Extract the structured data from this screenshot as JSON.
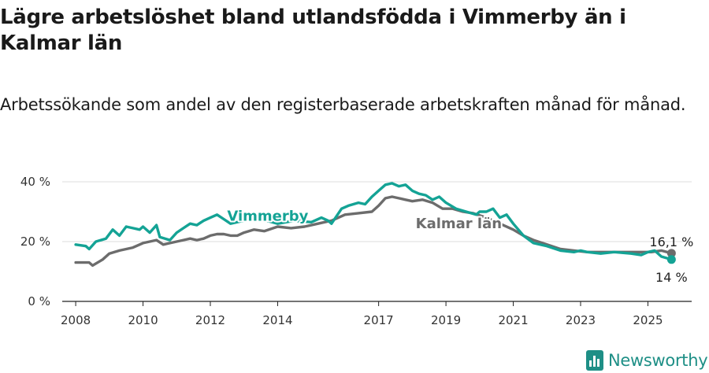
{
  "title": "Lägre arbetslöshet bland utlandsfödda i Vimmerby än i Kalmar län",
  "subtitle": "Arbetssökande som andel av den registerbaserade arbetskraften månad för månad.",
  "brand": "Newsworthy",
  "colors": {
    "vimmerby": "#14a395",
    "kalmar": "#6c6c6c",
    "grid": "#dcdcdc",
    "axis": "#222222",
    "brand": "#1e8f86"
  },
  "chart_data": {
    "type": "line",
    "title": "Lägre arbetslöshet bland utlandsfödda i Vimmerby än i Kalmar län",
    "subtitle": "Arbetssökande som andel av den registerbaserade arbetskraften månad för månad.",
    "xlabel": "",
    "ylabel": "",
    "xlim": [
      2007.6,
      2026.3
    ],
    "ylim": [
      0,
      40
    ],
    "yticks": [
      0,
      20,
      40
    ],
    "ytick_labels": [
      "0 %",
      "20 %",
      "40 %"
    ],
    "xticks": [
      2008,
      2010,
      2012,
      2014,
      2017,
      2019,
      2021,
      2023,
      2025
    ],
    "xtick_labels": [
      "2008",
      "2010",
      "2012",
      "2014",
      "2017",
      "2019",
      "2021",
      "2023",
      "2025"
    ],
    "grid": "horizontal",
    "legend": "inline labels",
    "series": [
      {
        "name": "Vimmerby",
        "color": "#14a395",
        "end_label": "14 %",
        "points": [
          [
            2008.0,
            19
          ],
          [
            2008.3,
            18.5
          ],
          [
            2008.4,
            17.5
          ],
          [
            2008.6,
            20
          ],
          [
            2008.9,
            21
          ],
          [
            2009.1,
            24
          ],
          [
            2009.3,
            22
          ],
          [
            2009.5,
            25
          ],
          [
            2009.7,
            24.5
          ],
          [
            2009.9,
            24
          ],
          [
            2010.0,
            25
          ],
          [
            2010.2,
            23
          ],
          [
            2010.4,
            25.5
          ],
          [
            2010.5,
            21.5
          ],
          [
            2010.8,
            20.5
          ],
          [
            2011.0,
            23
          ],
          [
            2011.2,
            24.5
          ],
          [
            2011.4,
            26
          ],
          [
            2011.6,
            25.5
          ],
          [
            2011.8,
            27
          ],
          [
            2012.0,
            28
          ],
          [
            2012.2,
            29
          ],
          [
            2012.4,
            27.5
          ],
          [
            2012.6,
            26
          ],
          [
            2013.0,
            27
          ],
          [
            2013.5,
            27.5
          ],
          [
            2014.0,
            26
          ],
          [
            2014.5,
            27
          ],
          [
            2015.0,
            26.5
          ],
          [
            2015.3,
            28
          ],
          [
            2015.5,
            27
          ],
          [
            2015.6,
            26
          ],
          [
            2015.9,
            31
          ],
          [
            2016.1,
            32
          ],
          [
            2016.4,
            33
          ],
          [
            2016.6,
            32.5
          ],
          [
            2016.8,
            35
          ],
          [
            2017.0,
            37
          ],
          [
            2017.2,
            39
          ],
          [
            2017.4,
            39.5
          ],
          [
            2017.6,
            38.5
          ],
          [
            2017.8,
            39
          ],
          [
            2018.0,
            37
          ],
          [
            2018.2,
            36
          ],
          [
            2018.4,
            35.5
          ],
          [
            2018.6,
            34
          ],
          [
            2018.8,
            35
          ],
          [
            2019.0,
            33
          ],
          [
            2019.3,
            31
          ],
          [
            2019.6,
            30
          ],
          [
            2019.9,
            29
          ],
          [
            2020.0,
            30
          ],
          [
            2020.2,
            30
          ],
          [
            2020.4,
            31
          ],
          [
            2020.6,
            28
          ],
          [
            2020.8,
            29
          ],
          [
            2021.0,
            26
          ],
          [
            2021.3,
            22
          ],
          [
            2021.6,
            19.5
          ],
          [
            2022.0,
            18.5
          ],
          [
            2022.4,
            17
          ],
          [
            2022.8,
            16.5
          ],
          [
            2023.0,
            17
          ],
          [
            2023.2,
            16.5
          ],
          [
            2023.6,
            16
          ],
          [
            2024.0,
            16.5
          ],
          [
            2024.5,
            16
          ],
          [
            2024.8,
            15.5
          ],
          [
            2025.0,
            16.5
          ],
          [
            2025.2,
            17
          ],
          [
            2025.4,
            15
          ],
          [
            2025.7,
            14
          ]
        ]
      },
      {
        "name": "Kalmar län",
        "color": "#6c6c6c",
        "end_label": "16,1 %",
        "points": [
          [
            2008.0,
            13
          ],
          [
            2008.4,
            13
          ],
          [
            2008.5,
            12
          ],
          [
            2008.8,
            14
          ],
          [
            2009.0,
            16
          ],
          [
            2009.3,
            17
          ],
          [
            2009.5,
            17.5
          ],
          [
            2009.7,
            18
          ],
          [
            2010.0,
            19.5
          ],
          [
            2010.2,
            20
          ],
          [
            2010.4,
            20.5
          ],
          [
            2010.6,
            19
          ],
          [
            2010.8,
            19.5
          ],
          [
            2011.0,
            20
          ],
          [
            2011.2,
            20.5
          ],
          [
            2011.4,
            21
          ],
          [
            2011.6,
            20.5
          ],
          [
            2011.8,
            21
          ],
          [
            2012.0,
            22
          ],
          [
            2012.2,
            22.5
          ],
          [
            2012.4,
            22.5
          ],
          [
            2012.6,
            22
          ],
          [
            2012.8,
            22
          ],
          [
            2013.0,
            23
          ],
          [
            2013.3,
            24
          ],
          [
            2013.6,
            23.5
          ],
          [
            2014.0,
            25
          ],
          [
            2014.4,
            24.5
          ],
          [
            2014.8,
            25
          ],
          [
            2015.2,
            26
          ],
          [
            2015.6,
            27
          ],
          [
            2016.0,
            29
          ],
          [
            2016.4,
            29.5
          ],
          [
            2016.8,
            30
          ],
          [
            2017.0,
            32
          ],
          [
            2017.2,
            34.5
          ],
          [
            2017.4,
            35
          ],
          [
            2017.6,
            34.5
          ],
          [
            2017.8,
            34
          ],
          [
            2018.0,
            33.5
          ],
          [
            2018.3,
            34
          ],
          [
            2018.6,
            33
          ],
          [
            2018.9,
            31
          ],
          [
            2019.2,
            31
          ],
          [
            2019.5,
            30
          ],
          [
            2019.8,
            29.5
          ],
          [
            2020.2,
            28
          ],
          [
            2020.6,
            26
          ],
          [
            2021.0,
            24
          ],
          [
            2021.3,
            22
          ],
          [
            2021.6,
            20.5
          ],
          [
            2022.0,
            19
          ],
          [
            2022.4,
            17.5
          ],
          [
            2022.8,
            17
          ],
          [
            2023.2,
            16.5
          ],
          [
            2023.6,
            16.5
          ],
          [
            2024.0,
            16.5
          ],
          [
            2024.4,
            16.5
          ],
          [
            2024.8,
            16.5
          ],
          [
            2025.1,
            16.5
          ],
          [
            2025.4,
            17
          ],
          [
            2025.7,
            16.1
          ]
        ]
      }
    ]
  }
}
